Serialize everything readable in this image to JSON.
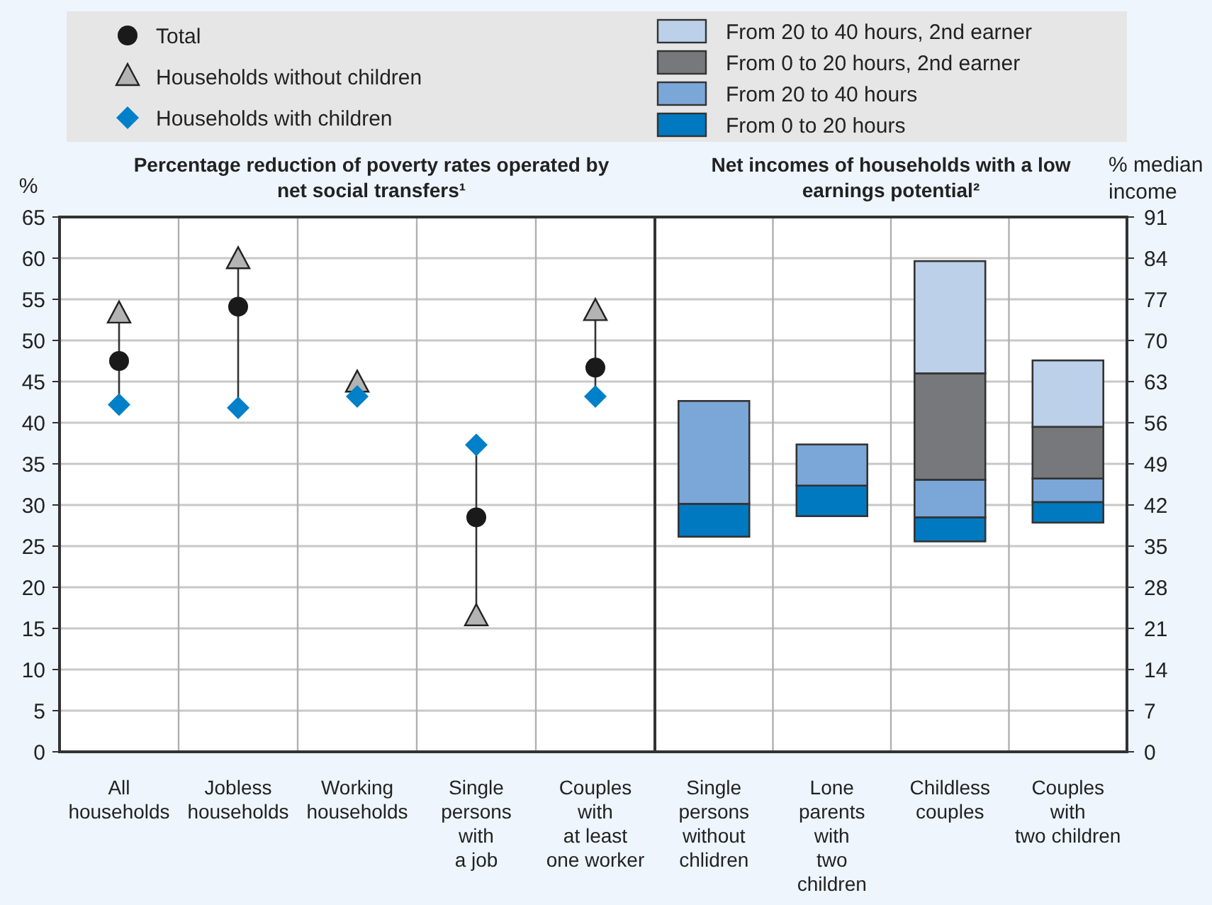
{
  "chart_data": [
    {
      "type": "scatter",
      "title": "Percentage reduction of poverty rates operated by net social transfers¹",
      "ylabel": "%",
      "categories": [
        "All\nhouseholds",
        "Jobless\nhouseholds",
        "Working\nhouseholds",
        "Single\npersons\nwith\na job",
        "Couples\nwith\nat least\none worker"
      ],
      "series": [
        {
          "name": "Total",
          "color": "#1a1a1a",
          "marker": "circle",
          "values": [
            47.5,
            54.1,
            null,
            28.5,
            46.7
          ]
        },
        {
          "name": "Households without children",
          "color": "#b3b3b3",
          "marker": "triangle",
          "values": [
            53.2,
            59.8,
            44.8,
            16.4,
            53.5
          ]
        },
        {
          "name": "Households with children",
          "color": "#0080c8",
          "marker": "diamond",
          "values": [
            42.2,
            41.8,
            43.2,
            37.3,
            43.2
          ]
        }
      ],
      "ylim": [
        0,
        65
      ],
      "yticks": [
        0,
        5,
        10,
        15,
        20,
        25,
        30,
        35,
        40,
        45,
        50,
        55,
        60,
        65
      ],
      "grid": true,
      "legend": "top"
    },
    {
      "type": "bar",
      "title": "Net incomes of households with a low earnings potential²",
      "ylabel": "% median\nincome",
      "categories": [
        "Single\npersons\nwithout\nchlidren",
        "Lone\nparents\nwith\ntwo\nchildren",
        "Childless\ncouples",
        "Couples\nwith\ntwo children"
      ],
      "series": [
        {
          "name": "From 0 to 20 hours",
          "color": "#0079c1",
          "base": [
            36.6,
            40.1,
            35.8,
            39.0
          ],
          "values": [
            5.6,
            5.2,
            4.1,
            3.5
          ]
        },
        {
          "name": "From 20 to 40 hours",
          "color": "#7ba7d8",
          "base": [
            42.2,
            45.3,
            39.9,
            42.5
          ],
          "values": [
            17.5,
            7.0,
            6.4,
            4.0
          ]
        },
        {
          "name": "From 0 to 20 hours, 2nd earner",
          "color": "#77787b",
          "base": [
            null,
            null,
            46.3,
            46.5
          ],
          "values": [
            null,
            null,
            18.1,
            8.8
          ]
        },
        {
          "name": "From 20 to 40 hours, 2nd earner",
          "color": "#bcd0ea",
          "base": [
            null,
            null,
            64.4,
            55.3
          ],
          "values": [
            null,
            null,
            19.1,
            11.3
          ]
        }
      ],
      "ylim": [
        0,
        91
      ],
      "yticks": [
        0,
        7,
        14,
        21,
        28,
        35,
        42,
        49,
        56,
        63,
        70,
        77,
        84,
        91
      ],
      "grid": true,
      "legend": "top"
    }
  ]
}
